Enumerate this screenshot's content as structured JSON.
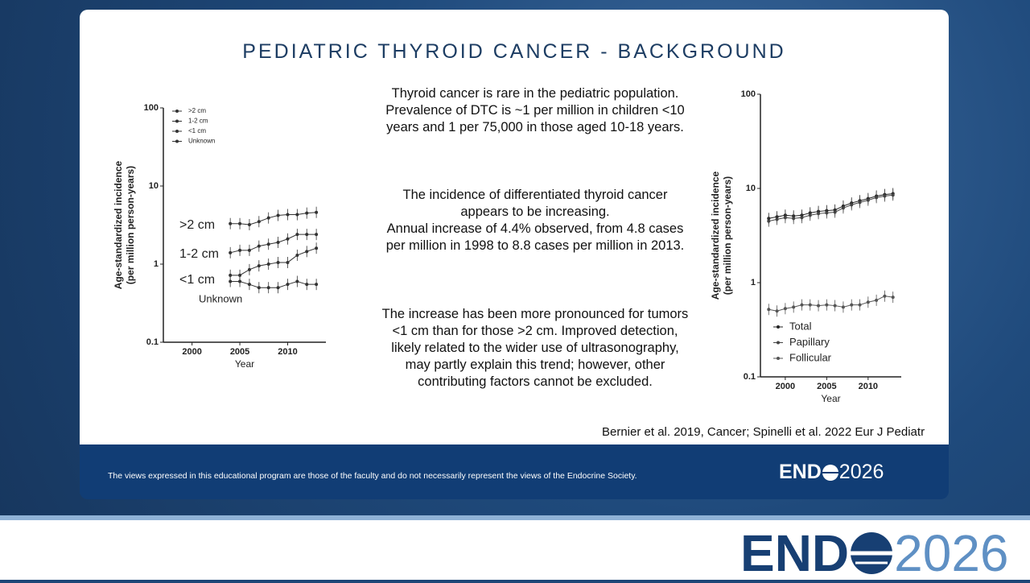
{
  "title": "PEDIATRIC THYROID CANCER - BACKGROUND",
  "paragraphs": [
    [
      "Thyroid cancer is rare in the pediatric population.",
      "Prevalence of DTC is ~1 per million in children <10",
      "years and 1 per 75,000 in those aged 10-18 years."
    ],
    [
      "The incidence of differentiated thyroid cancer",
      "appears to be increasing.",
      "Annual increase of 4.4% observed, from 4.8 cases",
      "per million in 1998 to 8.8 cases per million in 2013."
    ],
    [
      "The increase has been more pronounced for tumors",
      "<1 cm than for those >2 cm. Improved detection,",
      "likely related to the wider use of ultrasonography,",
      "may partly explain this trend; however, other",
      "contributing factors cannot be excluded."
    ]
  ],
  "citation": "Bernier et al. 2019, Cancer; Spinelli et al. 2022 Eur J Pediatr",
  "disclaimer": "The views expressed in this educational program are those of the faculty and do not necessarily represent the views of the Endocrine Society.",
  "logo": {
    "prefix": "END",
    "year": "2026"
  },
  "chart_data": [
    {
      "type": "scatter",
      "ylabel": [
        "Age-standardized incidence",
        "(per million person-years)"
      ],
      "xlabel": "Year",
      "xlim": [
        1997,
        2014
      ],
      "xticks": [
        2000,
        2005,
        2010
      ],
      "ylim": [
        0.1,
        100
      ],
      "yticks": [
        100,
        10,
        1,
        0.1
      ],
      "log_y": true,
      "legend": "upper left",
      "x": [
        2004,
        2005,
        2006,
        2007,
        2008,
        2009,
        2010,
        2011,
        2012,
        2013
      ],
      "series": [
        {
          "name": ">2 cm",
          "color": "#333333",
          "values": [
            3.3,
            3.3,
            3.2,
            3.5,
            3.9,
            4.2,
            4.3,
            4.3,
            4.5,
            4.6
          ]
        },
        {
          "name": "1-2 cm",
          "color": "#333333",
          "values": [
            1.4,
            1.5,
            1.5,
            1.7,
            1.8,
            1.9,
            2.1,
            2.4,
            2.4,
            2.4
          ]
        },
        {
          "name": "<1 cm",
          "color": "#333333",
          "values": [
            0.72,
            0.72,
            0.85,
            0.95,
            1.0,
            1.05,
            1.05,
            1.3,
            1.45,
            1.6
          ]
        },
        {
          "name": "Unknown",
          "color": "#333333",
          "values": [
            0.6,
            0.6,
            0.55,
            0.5,
            0.5,
            0.5,
            0.55,
            0.6,
            0.55,
            0.55
          ]
        }
      ],
      "annotations": [
        ">2 cm",
        "1-2 cm",
        "<1 cm",
        "Unknown"
      ]
    },
    {
      "type": "scatter",
      "ylabel": [
        "Age-standardized incidence",
        "(per million person-years)"
      ],
      "xlabel": "Year",
      "xlim": [
        1997,
        2014
      ],
      "xticks": [
        2000,
        2005,
        2010
      ],
      "ylim": [
        0.1,
        100
      ],
      "yticks": [
        100,
        10,
        1,
        0.1
      ],
      "log_y": true,
      "legend": "lower left",
      "x": [
        1998,
        1999,
        2000,
        2001,
        2002,
        2003,
        2004,
        2005,
        2006,
        2007,
        2008,
        2009,
        2010,
        2011,
        2012,
        2013
      ],
      "series": [
        {
          "name": "Total",
          "color": "#222222",
          "values": [
            4.8,
            5.0,
            5.2,
            5.1,
            5.2,
            5.5,
            5.7,
            5.8,
            5.9,
            6.5,
            7.0,
            7.4,
            7.8,
            8.3,
            8.6,
            8.8
          ]
        },
        {
          "name": "Papillary",
          "color": "#444444",
          "values": [
            4.5,
            4.7,
            4.9,
            4.8,
            4.9,
            5.2,
            5.4,
            5.5,
            5.6,
            6.2,
            6.7,
            7.1,
            7.5,
            8.0,
            8.3,
            8.5
          ]
        },
        {
          "name": "Follicular",
          "color": "#555555",
          "values": [
            0.52,
            0.5,
            0.53,
            0.55,
            0.58,
            0.58,
            0.57,
            0.58,
            0.57,
            0.55,
            0.58,
            0.58,
            0.62,
            0.65,
            0.72,
            0.7
          ]
        }
      ]
    }
  ]
}
